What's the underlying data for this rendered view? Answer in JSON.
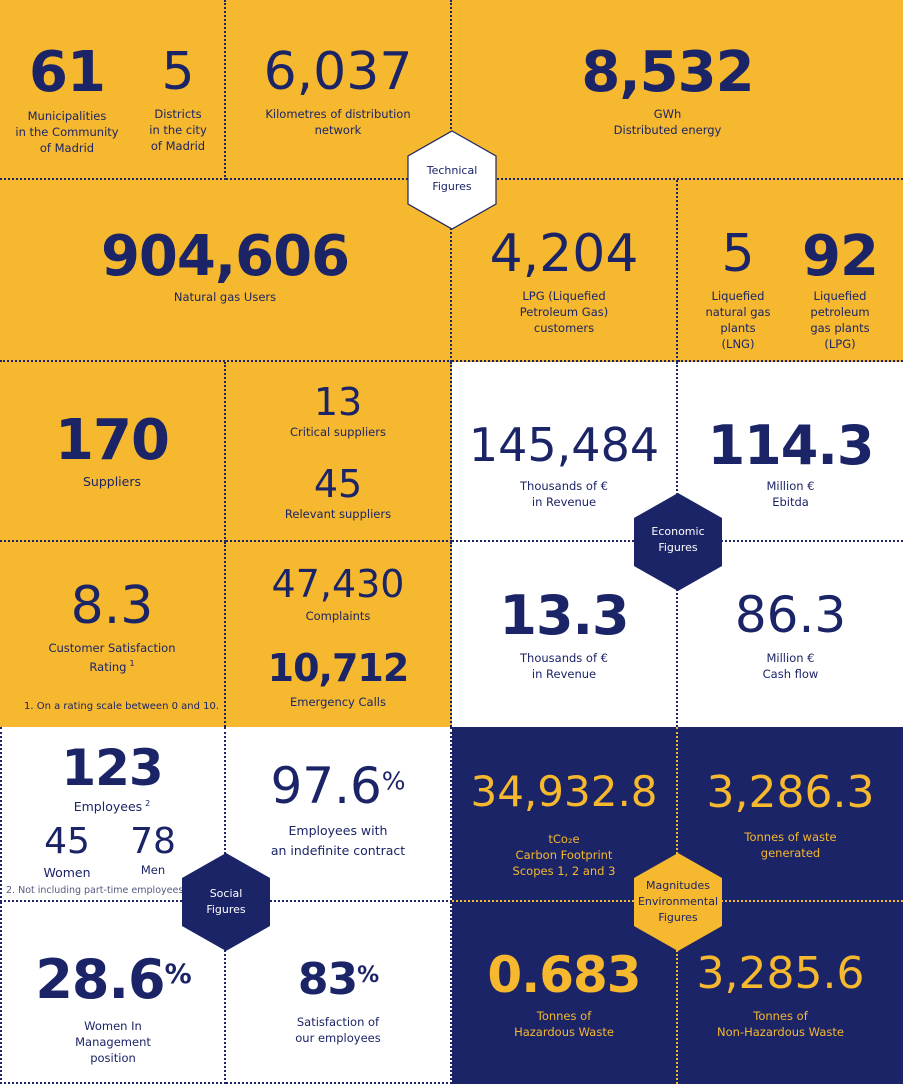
{
  "technical": {
    "municipalities": {
      "value": "61",
      "label1": "Municipalities",
      "label2": "in the Community",
      "label3": "of Madrid"
    },
    "districts": {
      "value": "5",
      "label1": "Districts",
      "label2": "in the city",
      "label3": "of Madrid"
    },
    "km": {
      "value": "6,037",
      "label1": "Kilometres  of distribution",
      "label2": "network"
    },
    "energy": {
      "value": "8,532",
      "label1": "GWh",
      "label2": "Distributed energy"
    },
    "hex": {
      "line1": "Technical",
      "line2": "Figures"
    },
    "users": {
      "value": "904,606",
      "label1": "Natural gas  Users"
    },
    "lpg": {
      "value": "4,204",
      "label1": "LPG (Liquefied",
      "label2": "Petroleum Gas)",
      "label3": "customers"
    },
    "lng_plants": {
      "value": "5",
      "label1": "Liquefied",
      "label2": "natural gas",
      "label3": "plants",
      "label4": "(LNG)"
    },
    "lpg_plants": {
      "value": "92",
      "label1": "Liquefied",
      "label2": "petroleum",
      "label3": "gas plants",
      "label4": "(LPG)"
    }
  },
  "suppliers": {
    "total": {
      "value": "170",
      "label1": "Suppliers"
    },
    "critical": {
      "value": "13",
      "label1": "Critical suppliers"
    },
    "relevant": {
      "value": "45",
      "label1": "Relevant suppliers"
    }
  },
  "customer": {
    "rating": {
      "value": "8.3",
      "label1": "Customer Satisfaction",
      "label2": "Rating",
      "sup": "1"
    },
    "footnote": "1.  On a rating scale between 0 and 10.",
    "complaints": {
      "value": "47,430",
      "label1": "Complaints"
    },
    "emergency": {
      "value": "10,712",
      "label1": "Emergency Calls"
    }
  },
  "economic": {
    "revenue": {
      "value": "145,484",
      "label1": "Thousands of €",
      "label2": "in Revenue"
    },
    "ebitda": {
      "value": "114.3",
      "label1": "Million €",
      "label2": "Ebitda"
    },
    "hex": {
      "line1": "Economic",
      "line2": "Figures"
    },
    "revenue2": {
      "value": "13.3",
      "label1": "Thousands of €",
      "label2": "in Revenue"
    },
    "cashflow": {
      "value": "86.3",
      "label1": "Million €",
      "label2": "Cash flow"
    }
  },
  "social": {
    "employees": {
      "value": "123",
      "label1": "Employees",
      "sup": "2"
    },
    "women": {
      "value": "45",
      "label1": "Women"
    },
    "men": {
      "value": "78",
      "label1": "Men"
    },
    "footnote": "2. Not including part-time employees.",
    "indefinite": {
      "value": "97.6",
      "pct": "%",
      "label1": "Employees with",
      "label2": "an indefinite contract"
    },
    "hex": {
      "line1": "Social",
      "line2": "Figures"
    },
    "women_mgmt": {
      "value": "28.6",
      "pct": "%",
      "label1": "Women  In",
      "label2": "Management",
      "label3": "position"
    },
    "satisfaction": {
      "value": "83",
      "pct": "%",
      "label1": "Satisfaction of",
      "label2": "our employees"
    }
  },
  "environmental": {
    "carbon": {
      "value": "34,932.8",
      "label1": "tCo₂e",
      "label2": "Carbon Footprint",
      "label3": "Scopes 1, 2 and 3"
    },
    "waste": {
      "value": "3,286.3",
      "label1": "Tonnes of waste",
      "label2": "generated"
    },
    "hex": {
      "line1": "Magnitudes",
      "line2": "Environmental",
      "line3": "Figures"
    },
    "hazardous": {
      "value": "0.683",
      "label1": "Tonnes of",
      "label2": "Hazardous Waste"
    },
    "nonhazardous": {
      "value": "3,285.6",
      "label1": "Tonnes of",
      "label2": "Non-Hazardous Waste"
    }
  },
  "colors": {
    "yellow": "#f5b82e",
    "navy": "#1b2466",
    "white": "#ffffff"
  }
}
